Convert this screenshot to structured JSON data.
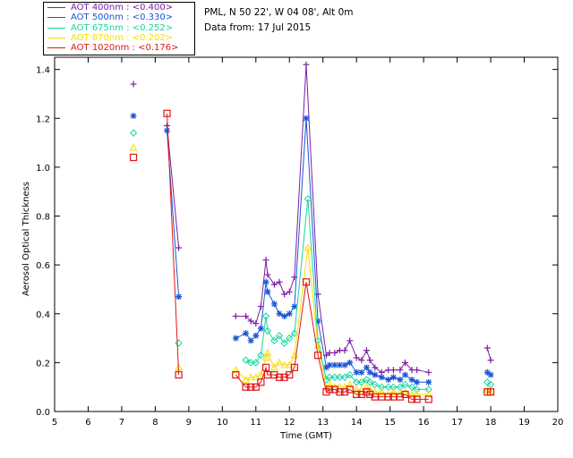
{
  "info": {
    "site": "PML, N 50 22', W 04 08', Alt 0m",
    "date": "Data from: 17 Jul 2015"
  },
  "chart_data": {
    "type": "scatter",
    "title": "",
    "xlabel": "Time (GMT)",
    "ylabel": "Aerosol Optical Thickness",
    "xlim": [
      5,
      20
    ],
    "ylim": [
      0,
      1.45
    ],
    "xticks": [
      5,
      6,
      7,
      8,
      9,
      10,
      11,
      12,
      13,
      14,
      15,
      16,
      17,
      18,
      19,
      20
    ],
    "yticks": [
      0.0,
      0.2,
      0.4,
      0.6,
      0.8,
      1.0,
      1.2,
      1.4
    ],
    "x": [
      7.35,
      8.35,
      8.7,
      10.4,
      10.7,
      10.85,
      11.0,
      11.15,
      11.3,
      11.35,
      11.55,
      11.7,
      11.85,
      12.0,
      12.15,
      12.5,
      12.55,
      12.85,
      13.1,
      13.2,
      13.35,
      13.5,
      13.65,
      13.8,
      14.0,
      14.15,
      14.3,
      14.4,
      14.55,
      14.75,
      14.95,
      15.1,
      15.3,
      15.45,
      15.65,
      15.8,
      16.15,
      17.9,
      18.0
    ],
    "series": [
      {
        "name": "AOT 400nm",
        "mean": "<0.400>",
        "color": "#7a1fa6",
        "marker": "plus",
        "values": [
          1.34,
          1.17,
          0.67,
          0.39,
          0.39,
          0.37,
          0.36,
          0.43,
          0.62,
          0.56,
          0.52,
          0.53,
          0.48,
          0.49,
          0.55,
          1.42,
          null,
          0.48,
          0.23,
          0.24,
          0.24,
          0.25,
          0.25,
          0.29,
          0.22,
          0.21,
          0.25,
          0.21,
          0.18,
          0.16,
          0.17,
          0.17,
          0.17,
          0.2,
          0.17,
          0.17,
          0.16,
          0.26,
          0.21
        ]
      },
      {
        "name": "AOT 500nm",
        "mean": "<0.330>",
        "color": "#1a55d6",
        "marker": "asterisk",
        "values": [
          1.21,
          1.15,
          0.47,
          0.3,
          0.32,
          0.29,
          0.31,
          0.34,
          0.53,
          0.49,
          0.44,
          0.4,
          0.39,
          0.4,
          0.43,
          1.2,
          null,
          0.37,
          0.18,
          0.19,
          0.19,
          0.19,
          0.19,
          0.2,
          0.16,
          0.16,
          0.18,
          0.16,
          0.15,
          0.14,
          0.13,
          0.14,
          0.13,
          0.15,
          0.13,
          0.12,
          0.12,
          0.16,
          0.15
        ]
      },
      {
        "name": "AOT 675nm",
        "mean": "<0.252>",
        "color": "#19d4a0",
        "marker": "diamond",
        "values": [
          1.14,
          null,
          0.28,
          null,
          0.21,
          0.2,
          0.2,
          0.23,
          0.39,
          0.33,
          0.29,
          0.31,
          0.28,
          0.3,
          0.32,
          null,
          0.87,
          0.29,
          0.13,
          0.14,
          0.14,
          0.14,
          0.14,
          0.15,
          0.12,
          0.12,
          0.13,
          0.12,
          0.11,
          0.1,
          0.1,
          0.1,
          0.1,
          0.11,
          0.1,
          0.09,
          0.09,
          0.12,
          0.11
        ]
      },
      {
        "name": "AOT 870nm",
        "mean": "<0.202>",
        "color": "#f4e000",
        "marker": "triangle",
        "values": [
          1.08,
          null,
          0.18,
          0.17,
          0.13,
          0.14,
          0.14,
          0.15,
          0.22,
          0.24,
          0.18,
          0.2,
          0.19,
          0.19,
          0.23,
          null,
          0.67,
          0.27,
          0.1,
          0.11,
          0.1,
          0.1,
          0.1,
          0.11,
          0.09,
          0.09,
          0.1,
          0.09,
          0.08,
          0.08,
          0.07,
          0.08,
          0.07,
          0.08,
          0.07,
          0.07,
          0.07,
          0.09,
          0.08
        ]
      },
      {
        "name": "AOT 1020nm",
        "mean": "<0.176>",
        "color": "#e01818",
        "marker": "square",
        "values": [
          1.04,
          1.22,
          0.15,
          0.15,
          0.1,
          0.1,
          0.1,
          0.12,
          0.18,
          0.15,
          0.15,
          0.14,
          0.14,
          0.15,
          0.18,
          0.53,
          null,
          0.23,
          0.08,
          0.09,
          0.09,
          0.08,
          0.08,
          0.09,
          0.07,
          0.07,
          0.08,
          0.07,
          0.06,
          0.06,
          0.06,
          0.06,
          0.06,
          0.07,
          0.05,
          0.05,
          0.05,
          0.08,
          0.08
        ]
      }
    ],
    "grid": false
  }
}
